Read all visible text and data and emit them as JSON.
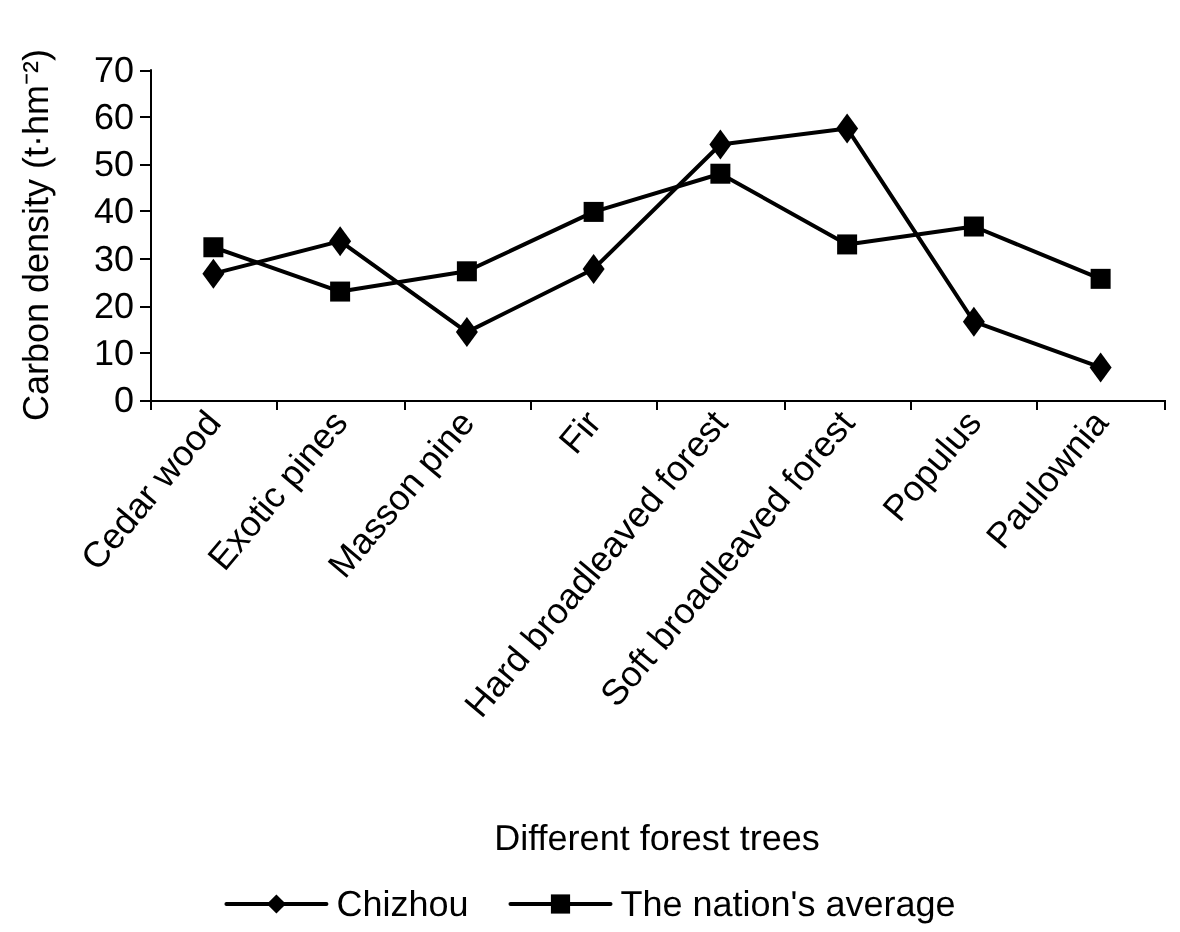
{
  "chart_data": {
    "type": "line",
    "xlabel": "Different forest trees",
    "ylabel": "Carbon density (t·hm⁻²)",
    "categories": [
      "Cedar wood",
      "Exotic pines",
      "Masson pine",
      "Fir",
      "Hard broadleaved forest",
      "Soft broadleaved forest",
      "Populus",
      "Paulownia"
    ],
    "series": [
      {
        "name": "Chizhou",
        "color": "#000000",
        "marker": "diamond",
        "values": [
          26.8,
          33.7,
          14.4,
          27.8,
          54.2,
          57.6,
          16.6,
          6.9
        ]
      },
      {
        "name": "The nation's average",
        "color": "#000000",
        "marker": "square",
        "values": [
          32.4,
          23,
          27.3,
          39.9,
          48,
          33,
          36.8,
          25.7
        ]
      }
    ],
    "ylim": [
      0,
      70
    ],
    "yticks": [
      0,
      10,
      20,
      30,
      40,
      50,
      60,
      70
    ],
    "grid": false,
    "legend": "bottom",
    "line_style": "solid"
  }
}
